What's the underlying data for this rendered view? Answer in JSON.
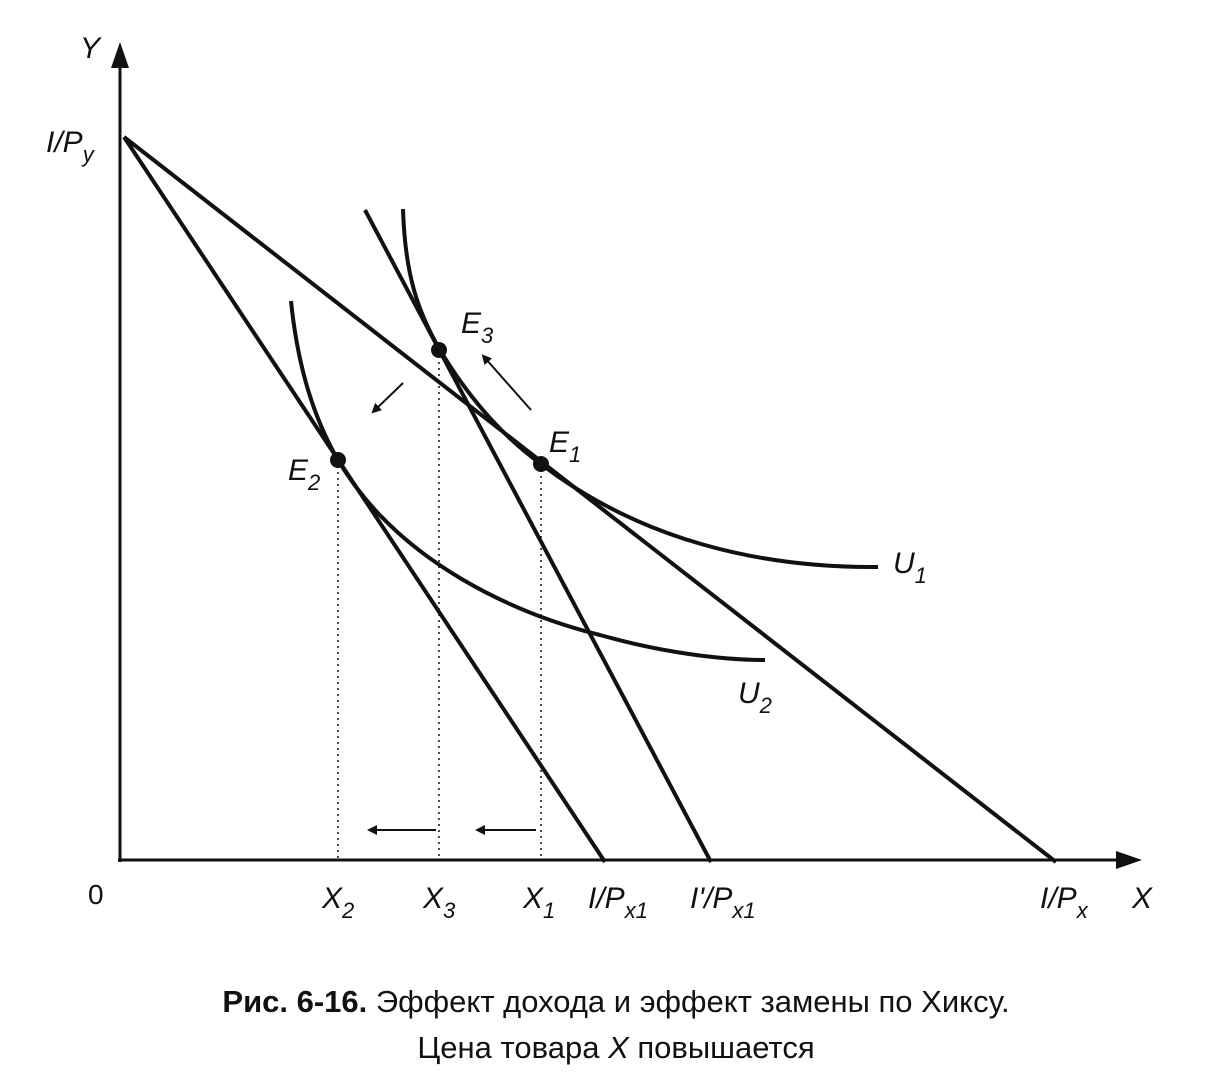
{
  "axes": {
    "y_label": "Y",
    "x_label": "X",
    "origin_label": "0"
  },
  "y_intercept_label": {
    "base": "I/P",
    "sub": "y"
  },
  "x_intercept_labels": [
    {
      "id": "i-over-px1",
      "base": "I/P",
      "sub": "x1"
    },
    {
      "id": "iprime-over-px1",
      "base": "I'/P",
      "sub": "x1"
    },
    {
      "id": "i-over-px",
      "base": "I/P",
      "sub": "x"
    }
  ],
  "quantity_labels": [
    {
      "id": "x2",
      "base": "X",
      "sub": "2"
    },
    {
      "id": "x3",
      "base": "X",
      "sub": "3"
    },
    {
      "id": "x1",
      "base": "X",
      "sub": "1"
    }
  ],
  "equilibrium_points": [
    {
      "id": "e1",
      "base": "E",
      "sub": "1"
    },
    {
      "id": "e2",
      "base": "E",
      "sub": "2"
    },
    {
      "id": "e3",
      "base": "E",
      "sub": "3"
    }
  ],
  "indifference_curves": [
    {
      "id": "u1",
      "base": "U",
      "sub": "1"
    },
    {
      "id": "u2",
      "base": "U",
      "sub": "2"
    }
  ],
  "caption": {
    "number": "Рис. 6-16.",
    "line1": "Эффект дохода и эффект замены по Хиксу.",
    "line2_before": "Цена товара ",
    "line2_var": "X",
    "line2_after": " повышается"
  }
}
